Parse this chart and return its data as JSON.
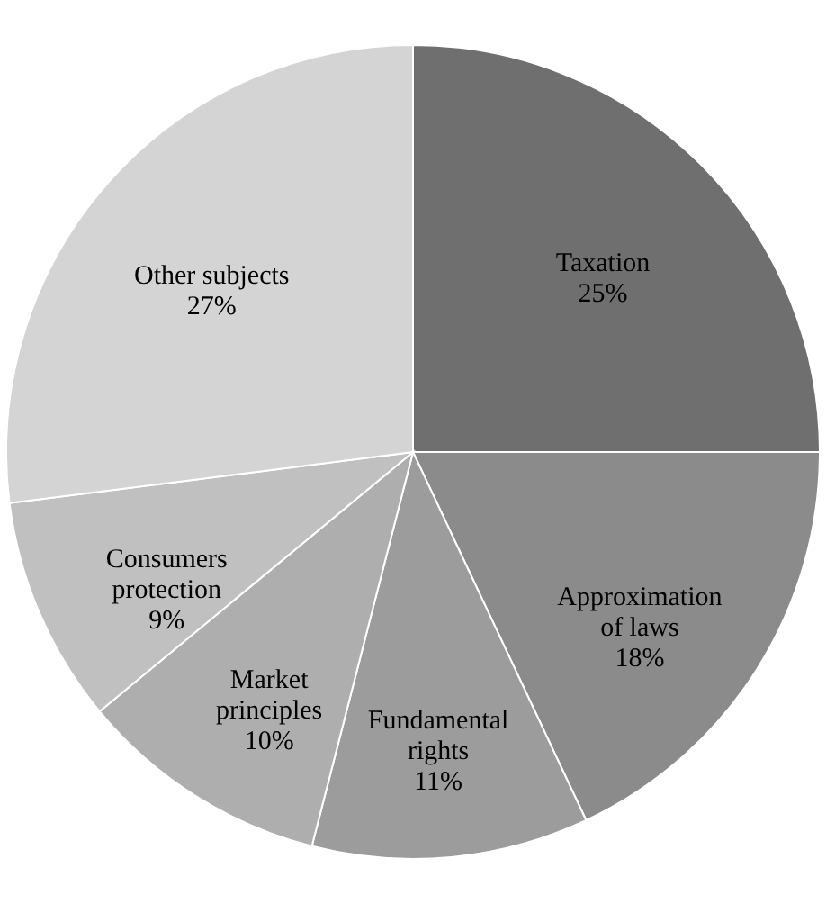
{
  "chart_data": {
    "type": "pie",
    "categories": [
      "Taxation",
      "Approximation of laws",
      "Fundamental rights",
      "Market principles",
      "Consumers protection",
      "Other subjects"
    ],
    "values": [
      25,
      18,
      11,
      10,
      9,
      27
    ],
    "colors": [
      "#6f6f6f",
      "#8b8b8b",
      "#9c9c9c",
      "#aeaeae",
      "#c0c0c0",
      "#d4d4d4"
    ],
    "value_labels": [
      "25%",
      "18%",
      "11%",
      "10%",
      "9%",
      "27%"
    ]
  }
}
